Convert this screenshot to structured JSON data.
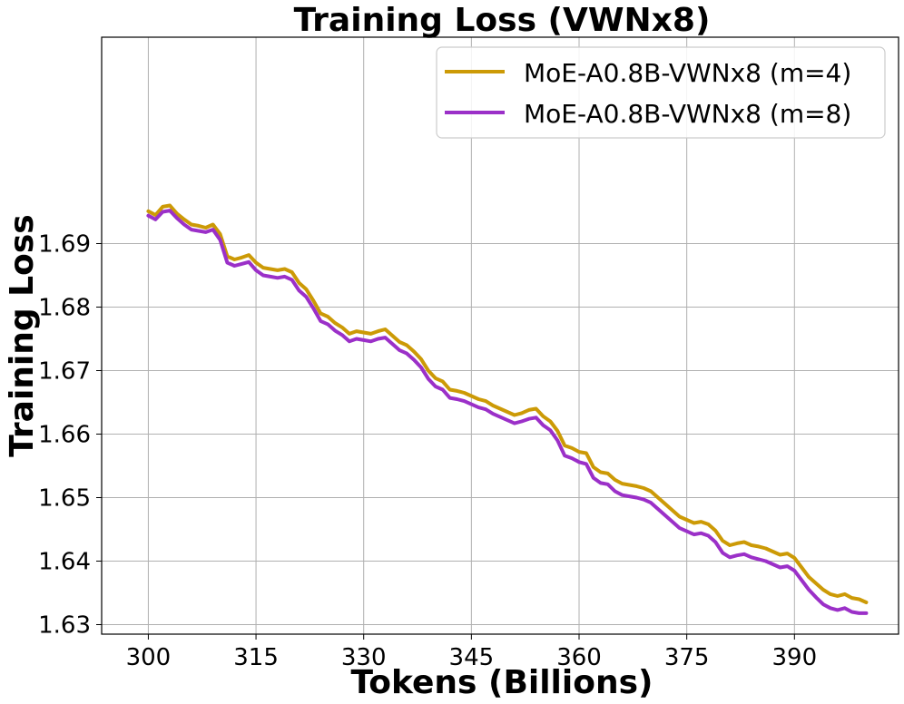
{
  "chart_data": {
    "type": "line",
    "title": "Training Loss (VWNx8)",
    "xlabel": "Tokens (Billions)",
    "ylabel": "Training Loss",
    "xlim": [
      293.5,
      404.5
    ],
    "ylim": [
      1.6285,
      1.7225
    ],
    "xticks": [
      300,
      315,
      330,
      345,
      360,
      375,
      390
    ],
    "xtick_labels": [
      "300",
      "315",
      "330",
      "345",
      "360",
      "375",
      "390"
    ],
    "yticks": [
      1.63,
      1.64,
      1.65,
      1.66,
      1.67,
      1.68,
      1.69
    ],
    "ytick_labels": [
      "1.63",
      "1.64",
      "1.65",
      "1.66",
      "1.67",
      "1.68",
      "1.69"
    ],
    "grid": true,
    "legend_position": "top-right",
    "series": [
      {
        "name": "MoE-A0.8B-VWNx8 (m=4)",
        "color": "#cc9a06",
        "x": [
          300,
          301,
          302,
          303,
          304,
          305,
          306,
          307,
          308,
          309,
          310,
          311,
          312,
          313,
          314,
          315,
          316,
          317,
          318,
          319,
          320,
          321,
          322,
          323,
          324,
          325,
          326,
          327,
          328,
          329,
          330,
          331,
          332,
          333,
          334,
          335,
          336,
          337,
          338,
          339,
          340,
          341,
          342,
          343,
          344,
          345,
          346,
          347,
          348,
          349,
          350,
          351,
          352,
          353,
          354,
          355,
          356,
          357,
          358,
          359,
          360,
          361,
          362,
          363,
          364,
          365,
          366,
          367,
          368,
          369,
          370,
          371,
          372,
          373,
          374,
          375,
          376,
          377,
          378,
          379,
          380,
          381,
          382,
          383,
          384,
          385,
          386,
          387,
          388,
          389,
          390,
          391,
          392,
          393,
          394,
          395,
          396,
          397,
          398,
          399,
          400
        ],
        "y": [
          1.6951,
          1.6945,
          1.6958,
          1.696,
          1.6947,
          1.6938,
          1.693,
          1.6928,
          1.6925,
          1.693,
          1.6915,
          1.688,
          1.6875,
          1.6878,
          1.6882,
          1.687,
          1.6862,
          1.686,
          1.6858,
          1.686,
          1.6855,
          1.6838,
          1.6828,
          1.681,
          1.679,
          1.6785,
          1.6775,
          1.6768,
          1.6758,
          1.6762,
          1.676,
          1.6758,
          1.6762,
          1.6765,
          1.6755,
          1.6745,
          1.674,
          1.673,
          1.6718,
          1.67,
          1.6688,
          1.6683,
          1.667,
          1.6668,
          1.6665,
          1.666,
          1.6655,
          1.6652,
          1.6645,
          1.664,
          1.6635,
          1.663,
          1.6633,
          1.6638,
          1.664,
          1.6628,
          1.662,
          1.6605,
          1.6582,
          1.6578,
          1.6572,
          1.657,
          1.6548,
          1.654,
          1.6538,
          1.6528,
          1.6522,
          1.652,
          1.6518,
          1.6515,
          1.651,
          1.65,
          1.649,
          1.648,
          1.647,
          1.6465,
          1.646,
          1.6462,
          1.6458,
          1.6448,
          1.6432,
          1.6425,
          1.6428,
          1.643,
          1.6425,
          1.6423,
          1.642,
          1.6415,
          1.641,
          1.6412,
          1.6405,
          1.639,
          1.6375,
          1.6365,
          1.6355,
          1.6348,
          1.6345,
          1.6348,
          1.6342,
          1.634,
          1.6335
        ]
      },
      {
        "name": "MoE-A0.8B-VWNx8 (m=8)",
        "color": "#9b30c8",
        "x": [
          300,
          301,
          302,
          303,
          304,
          305,
          306,
          307,
          308,
          309,
          310,
          311,
          312,
          313,
          314,
          315,
          316,
          317,
          318,
          319,
          320,
          321,
          322,
          323,
          324,
          325,
          326,
          327,
          328,
          329,
          330,
          331,
          332,
          333,
          334,
          335,
          336,
          337,
          338,
          339,
          340,
          341,
          342,
          343,
          344,
          345,
          346,
          347,
          348,
          349,
          350,
          351,
          352,
          353,
          354,
          355,
          356,
          357,
          358,
          359,
          360,
          361,
          362,
          363,
          364,
          365,
          366,
          367,
          368,
          369,
          370,
          371,
          372,
          373,
          374,
          375,
          376,
          377,
          378,
          379,
          380,
          381,
          382,
          383,
          384,
          385,
          386,
          387,
          388,
          389,
          390,
          391,
          392,
          393,
          394,
          395,
          396,
          397,
          398,
          399,
          400
        ],
        "y": [
          1.6944,
          1.6938,
          1.695,
          1.6952,
          1.694,
          1.693,
          1.6922,
          1.692,
          1.6918,
          1.6922,
          1.6906,
          1.687,
          1.6865,
          1.6868,
          1.6871,
          1.6858,
          1.685,
          1.6848,
          1.6846,
          1.6848,
          1.6843,
          1.6826,
          1.6816,
          1.6798,
          1.6778,
          1.6773,
          1.6763,
          1.6756,
          1.6746,
          1.675,
          1.6748,
          1.6746,
          1.675,
          1.6752,
          1.6742,
          1.6732,
          1.6727,
          1.6717,
          1.6705,
          1.6687,
          1.6675,
          1.667,
          1.6657,
          1.6655,
          1.6652,
          1.6647,
          1.6642,
          1.6639,
          1.6632,
          1.6627,
          1.6622,
          1.6617,
          1.662,
          1.6624,
          1.6626,
          1.6614,
          1.6606,
          1.659,
          1.6566,
          1.6562,
          1.6556,
          1.6553,
          1.6531,
          1.6523,
          1.6521,
          1.651,
          1.6504,
          1.6502,
          1.65,
          1.6497,
          1.6492,
          1.6482,
          1.6472,
          1.6462,
          1.6452,
          1.6447,
          1.6442,
          1.6444,
          1.644,
          1.643,
          1.6413,
          1.6406,
          1.6409,
          1.6411,
          1.6406,
          1.6403,
          1.64,
          1.6395,
          1.639,
          1.6392,
          1.6385,
          1.637,
          1.6355,
          1.6343,
          1.6332,
          1.6326,
          1.6323,
          1.6326,
          1.632,
          1.6318,
          1.6318
        ]
      }
    ]
  }
}
